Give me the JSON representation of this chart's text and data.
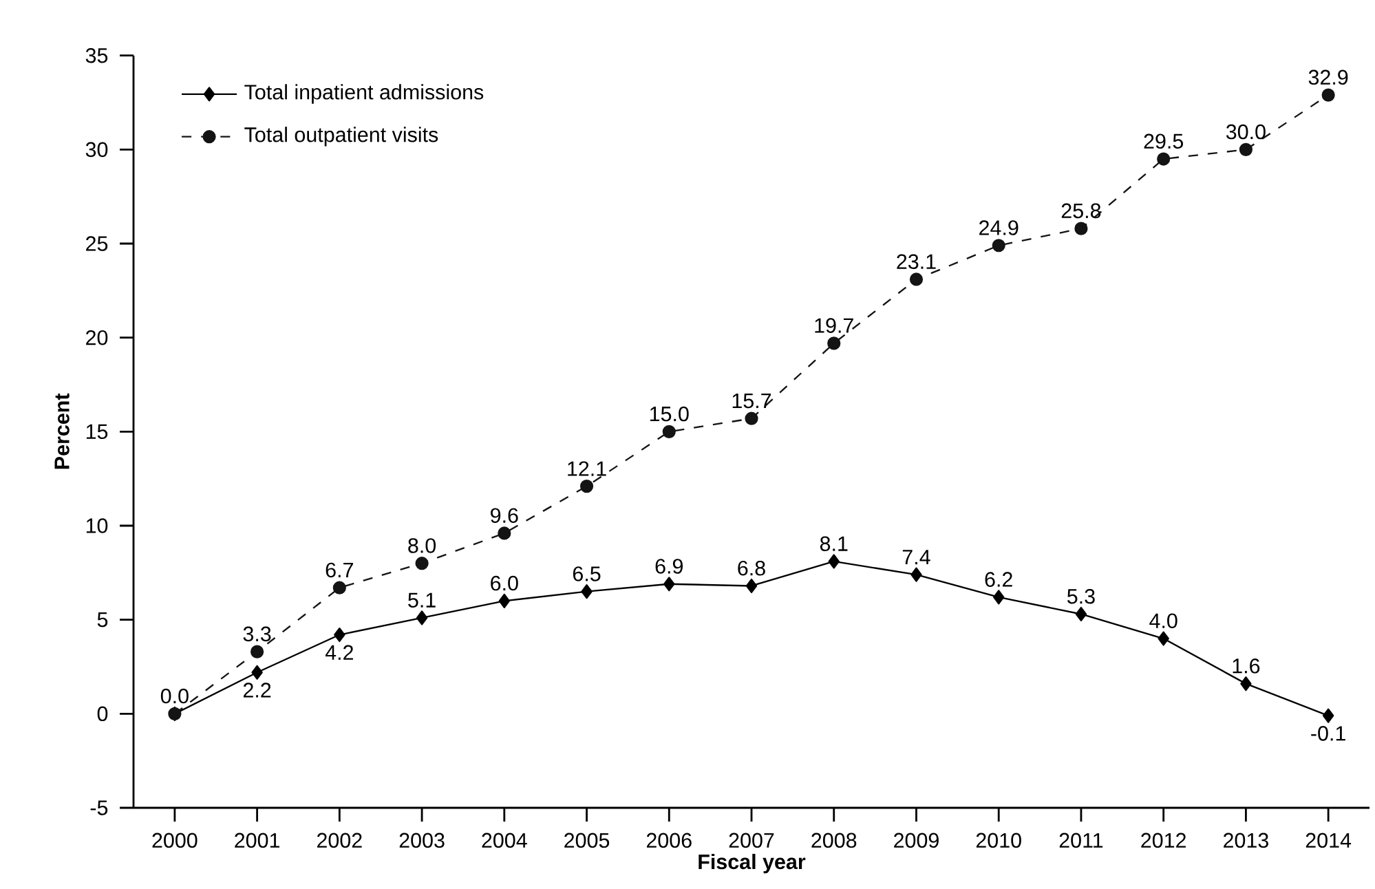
{
  "chart_data": {
    "type": "line",
    "xlabel": "Fiscal year",
    "ylabel": "Percent",
    "categories": [
      "2000",
      "2001",
      "2002",
      "2003",
      "2004",
      "2005",
      "2006",
      "2007",
      "2008",
      "2009",
      "2010",
      "2011",
      "2012",
      "2013",
      "2014"
    ],
    "series": [
      {
        "name": "Total inpatient admissions",
        "color": "#000000",
        "marker": "diamond",
        "line_style": "solid",
        "values": [
          0.0,
          2.2,
          4.2,
          5.1,
          6.0,
          6.5,
          6.9,
          6.8,
          8.1,
          7.4,
          6.2,
          5.3,
          4.0,
          1.6,
          -0.1
        ],
        "value_labels": [
          null,
          "2.2",
          "4.2",
          "5.1",
          "6.0",
          "6.5",
          "6.9",
          "6.8",
          "8.1",
          "7.4",
          "6.2",
          "5.3",
          "4.0",
          "1.6",
          "-0.1"
        ]
      },
      {
        "name": "Total outpatient visits",
        "color": "#141414",
        "marker": "circle",
        "line_style": "dashed",
        "values": [
          0.0,
          3.3,
          6.7,
          8.0,
          9.6,
          12.1,
          15.0,
          15.7,
          19.7,
          23.1,
          24.9,
          25.8,
          29.5,
          30.0,
          32.9
        ],
        "value_labels": [
          "0.0",
          "3.3",
          "6.7",
          "8.0",
          "9.6",
          "12.1",
          "15.0",
          "15.7",
          "19.7",
          "23.1",
          "24.9",
          "25.8",
          "29.5",
          "30.0",
          "32.9"
        ]
      }
    ],
    "ylim": [
      -5,
      35
    ],
    "yticks": [
      -5,
      0,
      5,
      10,
      15,
      20,
      25,
      30,
      35
    ],
    "grid": false,
    "legend": "top left"
  }
}
